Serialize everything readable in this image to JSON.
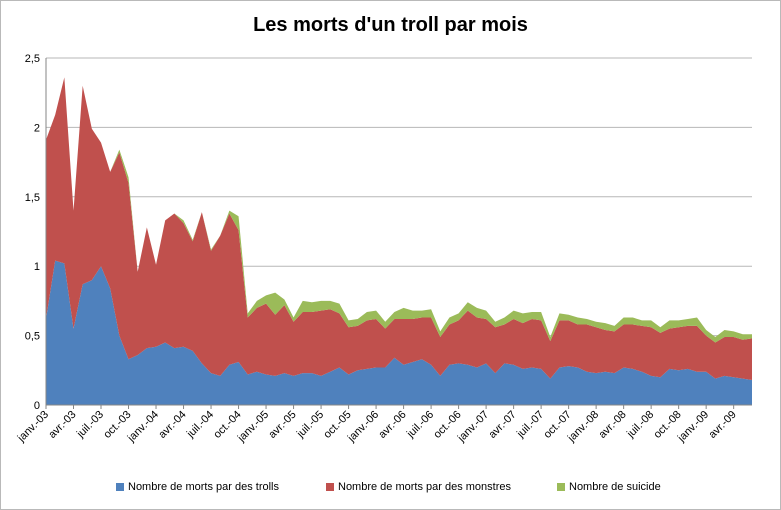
{
  "chart_data": {
    "type": "area",
    "stacked": true,
    "title": "Les morts d'un troll par mois",
    "xlabel": "",
    "ylabel": "",
    "ylim": [
      0,
      2.5
    ],
    "y_ticks": [
      "0",
      "0,5",
      "1",
      "1,5",
      "2",
      "2,5"
    ],
    "grid": true,
    "legend_position": "bottom",
    "x": [
      "janv.-03",
      "févr.-03",
      "mars-03",
      "avr.-03",
      "mai-03",
      "juin-03",
      "juil.-03",
      "août-03",
      "sept.-03",
      "oct.-03",
      "nov.-03",
      "déc.-03",
      "janv.-04",
      "févr.-04",
      "mars-04",
      "avr.-04",
      "mai-04",
      "juin-04",
      "juil.-04",
      "août-04",
      "sept.-04",
      "oct.-04",
      "nov.-04",
      "déc.-04",
      "janv.-05",
      "févr.-05",
      "mars-05",
      "avr.-05",
      "mai-05",
      "juin-05",
      "juil.-05",
      "août-05",
      "sept.-05",
      "oct.-05",
      "nov.-05",
      "déc.-05",
      "janv.-06",
      "févr.-06",
      "mars-06",
      "avr.-06",
      "mai-06",
      "juin-06",
      "juil.-06",
      "août-06",
      "sept.-06",
      "oct.-06",
      "nov.-06",
      "déc.-06",
      "janv.-07",
      "févr.-07",
      "mars-07",
      "avr.-07",
      "mai-07",
      "juin-07",
      "juil.-07",
      "août-07",
      "sept.-07",
      "oct.-07",
      "nov.-07",
      "déc.-07",
      "janv.-08",
      "févr.-08",
      "mars-08",
      "avr.-08",
      "mai-08",
      "juin-08",
      "juil.-08",
      "août-08",
      "sept.-08",
      "oct.-08",
      "nov.-08",
      "déc.-08",
      "janv.-09",
      "févr.-09",
      "mars-09",
      "avr.-09",
      "mai-09",
      "juin-09"
    ],
    "x_tick_labels": [
      "janv.-03",
      "avr.-03",
      "juil.-03",
      "oct.-03",
      "janv.-04",
      "avr.-04",
      "juil.-04",
      "oct.-04",
      "janv.-05",
      "avr.-05",
      "juil.-05",
      "oct.-05",
      "janv.-06",
      "avr.-06",
      "juil.-06",
      "oct.-06",
      "janv.-07",
      "avr.-07",
      "juil.-07",
      "oct.-07",
      "janv.-08",
      "avr.-08",
      "juil.-08",
      "oct.-08",
      "janv.-09",
      "avr.-09"
    ],
    "series": [
      {
        "name": "Nombre de morts par des trolls",
        "color": "#4f81bd",
        "values": [
          0.62,
          1.04,
          1.02,
          0.55,
          0.87,
          0.9,
          1.0,
          0.84,
          0.5,
          0.33,
          0.36,
          0.41,
          0.42,
          0.45,
          0.41,
          0.42,
          0.39,
          0.3,
          0.23,
          0.21,
          0.29,
          0.31,
          0.22,
          0.24,
          0.22,
          0.21,
          0.23,
          0.21,
          0.23,
          0.23,
          0.21,
          0.24,
          0.27,
          0.22,
          0.25,
          0.26,
          0.27,
          0.27,
          0.34,
          0.29,
          0.31,
          0.33,
          0.29,
          0.21,
          0.29,
          0.3,
          0.29,
          0.27,
          0.3,
          0.23,
          0.3,
          0.29,
          0.26,
          0.27,
          0.26,
          0.19,
          0.27,
          0.28,
          0.27,
          0.24,
          0.23,
          0.24,
          0.23,
          0.27,
          0.26,
          0.24,
          0.21,
          0.2,
          0.26,
          0.25,
          0.26,
          0.24,
          0.24,
          0.19,
          0.21,
          0.2,
          0.19,
          0.18
        ]
      },
      {
        "name": "Nombre de morts par des monstres",
        "color": "#c0504d",
        "values": [
          1.29,
          1.05,
          1.34,
          0.85,
          1.43,
          1.09,
          0.89,
          0.84,
          1.32,
          1.27,
          0.6,
          0.87,
          0.59,
          0.88,
          0.97,
          0.89,
          0.79,
          1.09,
          0.88,
          1.01,
          1.09,
          0.95,
          0.41,
          0.46,
          0.51,
          0.44,
          0.49,
          0.39,
          0.44,
          0.44,
          0.47,
          0.45,
          0.39,
          0.34,
          0.32,
          0.35,
          0.35,
          0.28,
          0.28,
          0.33,
          0.31,
          0.3,
          0.34,
          0.28,
          0.29,
          0.31,
          0.39,
          0.36,
          0.32,
          0.33,
          0.28,
          0.33,
          0.33,
          0.35,
          0.35,
          0.27,
          0.34,
          0.33,
          0.31,
          0.34,
          0.33,
          0.3,
          0.3,
          0.31,
          0.32,
          0.33,
          0.35,
          0.32,
          0.29,
          0.31,
          0.31,
          0.33,
          0.26,
          0.26,
          0.28,
          0.29,
          0.28,
          0.3
        ]
      },
      {
        "name": "Nombre de suicide",
        "color": "#9bbb59",
        "values": [
          0.0,
          0.0,
          0.0,
          0.0,
          0.0,
          0.0,
          0.0,
          0.0,
          0.02,
          0.04,
          0.0,
          0.0,
          0.0,
          0.0,
          0.0,
          0.02,
          0.01,
          0.0,
          0.01,
          0.0,
          0.02,
          0.1,
          0.03,
          0.05,
          0.06,
          0.16,
          0.04,
          0.03,
          0.08,
          0.07,
          0.07,
          0.06,
          0.07,
          0.05,
          0.05,
          0.06,
          0.06,
          0.05,
          0.05,
          0.08,
          0.06,
          0.05,
          0.06,
          0.04,
          0.05,
          0.05,
          0.06,
          0.07,
          0.06,
          0.04,
          0.05,
          0.06,
          0.07,
          0.05,
          0.06,
          0.03,
          0.05,
          0.04,
          0.05,
          0.04,
          0.04,
          0.05,
          0.04,
          0.05,
          0.05,
          0.04,
          0.05,
          0.04,
          0.06,
          0.05,
          0.05,
          0.06,
          0.04,
          0.04,
          0.05,
          0.04,
          0.04,
          0.03
        ]
      }
    ]
  }
}
